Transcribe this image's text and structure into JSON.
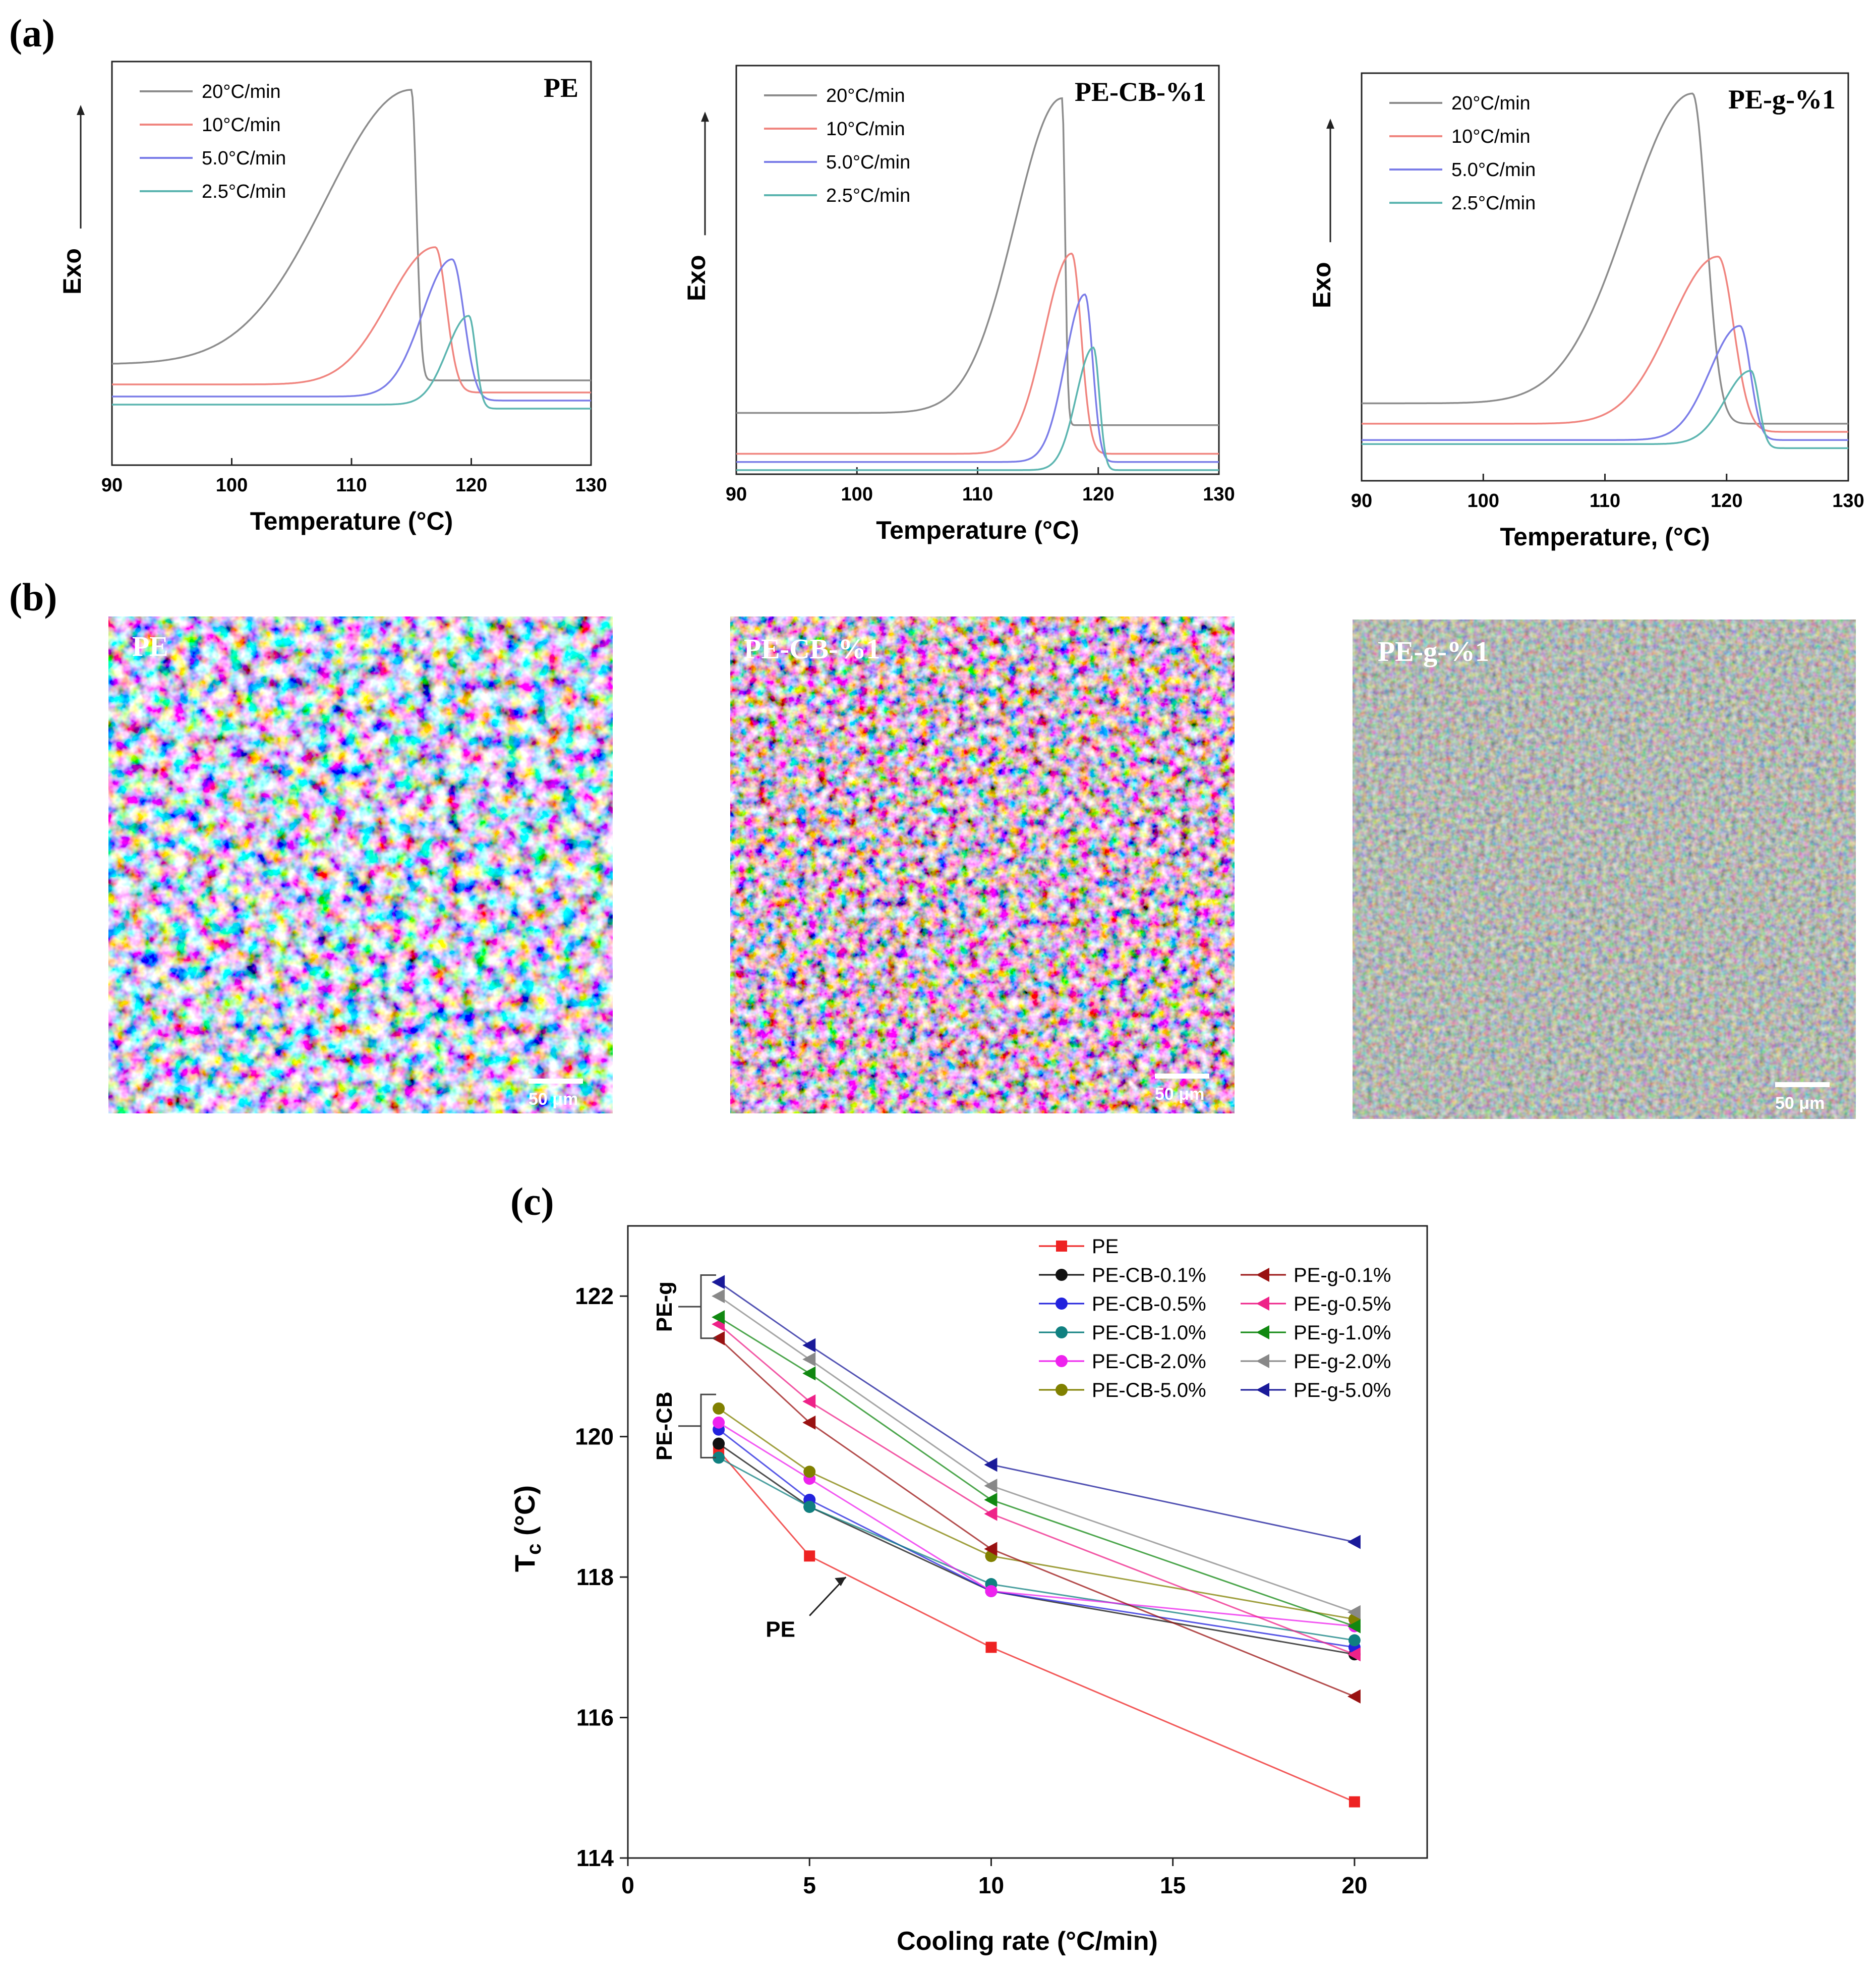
{
  "panels": {
    "a": "(a)",
    "b": "(b)",
    "c": "(c)"
  },
  "dsc": {
    "ylabel": "Exo",
    "xticks": [
      "90",
      "100",
      "110",
      "120",
      "130"
    ],
    "xmin": 90,
    "xmax": 130,
    "legend": [
      "20°C/min",
      "10°C/min",
      "5.0°C/min",
      "2.5°C/min"
    ],
    "colors": [
      "#8c8c8c",
      "#f0857f",
      "#7b7de8",
      "#5cb5b0"
    ],
    "charts": [
      {
        "title": "PE",
        "xlabel": "Temperature (°C)",
        "curves": [
          {
            "peak": 115.0,
            "height": 0.93,
            "base": 0.25,
            "after": 0.21,
            "lw": 10,
            "rw": 0.6,
            "tail": 0.0
          },
          {
            "peak": 117.0,
            "height": 0.54,
            "base": 0.2,
            "after": 0.18,
            "lw": 5.5,
            "rw": 1.3,
            "tail": 0.0
          },
          {
            "peak": 118.4,
            "height": 0.51,
            "base": 0.17,
            "after": 0.16,
            "lw": 3.5,
            "rw": 1.4,
            "tail": 0.0
          },
          {
            "peak": 119.8,
            "height": 0.37,
            "base": 0.15,
            "after": 0.14,
            "lw": 2.6,
            "rw": 0.8,
            "tail": 0.0
          }
        ]
      },
      {
        "title": "PE-CB-%1",
        "xlabel": "Temperature (°C)",
        "curves": [
          {
            "peak": 117.0,
            "height": 0.92,
            "base": 0.15,
            "after": 0.12,
            "lw": 5.5,
            "rw": 0.35,
            "tail": 0.0
          },
          {
            "peak": 117.8,
            "height": 0.54,
            "base": 0.05,
            "after": 0.05,
            "lw": 3.2,
            "rw": 1.1,
            "tail": 0.0
          },
          {
            "peak": 118.9,
            "height": 0.44,
            "base": 0.03,
            "after": 0.03,
            "lw": 2.3,
            "rw": 0.9,
            "tail": 0.0
          },
          {
            "peak": 119.6,
            "height": 0.31,
            "base": 0.01,
            "after": 0.01,
            "lw": 2.0,
            "rw": 0.7,
            "tail": 0.0
          }
        ]
      },
      {
        "title": "PE-g-%1",
        "xlabel": "Temperature, (°C)",
        "curves": [
          {
            "peak": 117.2,
            "height": 0.95,
            "base": 0.19,
            "after": 0.14,
            "lw": 7.5,
            "rw": 1.6,
            "tail": 0.0
          },
          {
            "peak": 119.3,
            "height": 0.55,
            "base": 0.14,
            "after": 0.12,
            "lw": 5.5,
            "rw": 1.8,
            "tail": 0.0
          },
          {
            "peak": 121.1,
            "height": 0.38,
            "base": 0.1,
            "after": 0.1,
            "lw": 3.5,
            "rw": 1.2,
            "tail": 0.0
          },
          {
            "peak": 122.0,
            "height": 0.27,
            "base": 0.09,
            "after": 0.08,
            "lw": 3.0,
            "rw": 0.9,
            "tail": 0.0
          }
        ]
      }
    ]
  },
  "micrographs": [
    {
      "label": "PE",
      "scale": "50 μm"
    },
    {
      "label": "PE-CB-%1",
      "scale": "50 μm"
    },
    {
      "label": "PE-g-%1",
      "scale": "50 μm"
    }
  ],
  "chart_data": {
    "type": "line",
    "xlabel": "Cooling rate (°C/min)",
    "ylabel": "T",
    "ylabel_sub": "c",
    "ylabel_unit": " (°C)",
    "x": [
      2.5,
      5,
      10,
      20
    ],
    "xlim": [
      0,
      22
    ],
    "ylim": [
      114,
      123
    ],
    "xticks": [
      "0",
      "5",
      "10",
      "15",
      "20"
    ],
    "yticks": [
      "114",
      "116",
      "118",
      "120",
      "122"
    ],
    "groups": [
      "PE-g",
      "PE-CB"
    ],
    "annotation": "PE",
    "series": [
      {
        "name": "PE",
        "color": "#ee2222",
        "marker": "square",
        "values": [
          119.8,
          118.3,
          117.0,
          114.8
        ]
      },
      {
        "name": "PE-CB-0.1%",
        "color": "#111111",
        "marker": "circle",
        "values": [
          119.9,
          119.0,
          117.8,
          116.9
        ]
      },
      {
        "name": "PE-CB-0.5%",
        "color": "#2222dd",
        "marker": "circle",
        "values": [
          120.1,
          119.1,
          117.8,
          117.0
        ]
      },
      {
        "name": "PE-CB-1.0%",
        "color": "#108080",
        "marker": "circle",
        "values": [
          119.7,
          119.0,
          117.9,
          117.1
        ]
      },
      {
        "name": "PE-CB-2.0%",
        "color": "#ee22ee",
        "marker": "circle",
        "values": [
          120.2,
          119.4,
          117.8,
          117.3
        ]
      },
      {
        "name": "PE-CB-5.0%",
        "color": "#808000",
        "marker": "circle",
        "values": [
          120.4,
          119.5,
          118.3,
          117.4
        ]
      },
      {
        "name": "PE-g-0.1%",
        "color": "#991111",
        "marker": "triangle-left",
        "values": [
          121.4,
          120.2,
          118.4,
          116.3
        ]
      },
      {
        "name": "PE-g-0.5%",
        "color": "#ee2288",
        "marker": "triangle-left",
        "values": [
          121.6,
          120.5,
          118.9,
          116.9
        ]
      },
      {
        "name": "PE-g-1.0%",
        "color": "#118811",
        "marker": "triangle-left",
        "values": [
          121.7,
          120.9,
          119.1,
          117.3
        ]
      },
      {
        "name": "PE-g-2.0%",
        "color": "#888888",
        "marker": "triangle-left",
        "values": [
          122.0,
          121.1,
          119.3,
          117.5
        ]
      },
      {
        "name": "PE-g-5.0%",
        "color": "#1a1a99",
        "marker": "triangle-left",
        "values": [
          122.2,
          121.3,
          119.6,
          118.5
        ]
      }
    ]
  }
}
